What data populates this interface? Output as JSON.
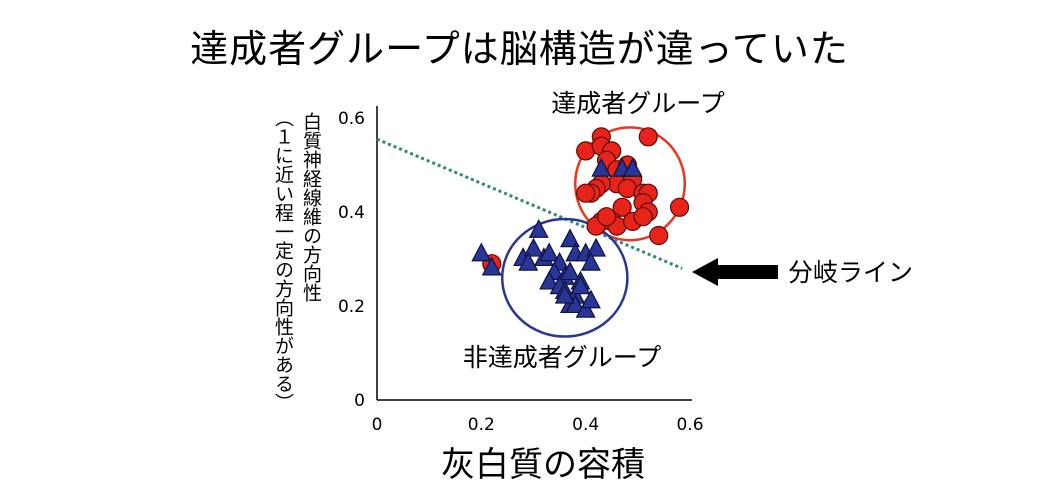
{
  "title": "達成者グループは脳構造が違っていた",
  "chart_data": {
    "type": "scatter",
    "xlabel": "灰白質の容積",
    "ylabel": "白質神経線維の方向性",
    "ylabel_note": "（１に近い程一定の方向性がある）",
    "xlim": [
      0,
      0.6
    ],
    "ylim": [
      0,
      0.6
    ],
    "xticks": [
      "0",
      "0.2",
      "0.4",
      "0.6"
    ],
    "yticks": [
      "0",
      "0.2",
      "0.4",
      "0.6"
    ],
    "grid": false,
    "colors": {
      "achiever": "#e8231a",
      "non_achiever": "#2a3598",
      "line": "#2e8b6e"
    },
    "series": [
      {
        "name": "達成者グループ",
        "marker": "circle",
        "points": [
          [
            0.22,
            0.29
          ],
          [
            0.4,
            0.53
          ],
          [
            0.43,
            0.56
          ],
          [
            0.43,
            0.54
          ],
          [
            0.45,
            0.53
          ],
          [
            0.44,
            0.51
          ],
          [
            0.46,
            0.49
          ],
          [
            0.48,
            0.5
          ],
          [
            0.52,
            0.56
          ],
          [
            0.46,
            0.46
          ],
          [
            0.43,
            0.46
          ],
          [
            0.49,
            0.47
          ],
          [
            0.42,
            0.45
          ],
          [
            0.48,
            0.45
          ],
          [
            0.51,
            0.44
          ],
          [
            0.52,
            0.44
          ],
          [
            0.51,
            0.42
          ],
          [
            0.47,
            0.41
          ],
          [
            0.41,
            0.44
          ],
          [
            0.4,
            0.44
          ],
          [
            0.45,
            0.38
          ],
          [
            0.43,
            0.38
          ],
          [
            0.42,
            0.37
          ],
          [
            0.46,
            0.37
          ],
          [
            0.44,
            0.39
          ],
          [
            0.49,
            0.38
          ],
          [
            0.52,
            0.4
          ],
          [
            0.51,
            0.39
          ],
          [
            0.58,
            0.41
          ],
          [
            0.54,
            0.35
          ]
        ]
      },
      {
        "name": "非達成者グループ",
        "marker": "triangle",
        "points": [
          [
            0.47,
            0.49
          ],
          [
            0.49,
            0.49
          ],
          [
            0.43,
            0.49
          ],
          [
            0.2,
            0.31
          ],
          [
            0.22,
            0.28
          ],
          [
            0.28,
            0.3
          ],
          [
            0.31,
            0.36
          ],
          [
            0.32,
            0.3
          ],
          [
            0.33,
            0.31
          ],
          [
            0.35,
            0.29
          ],
          [
            0.37,
            0.34
          ],
          [
            0.38,
            0.31
          ],
          [
            0.4,
            0.31
          ],
          [
            0.42,
            0.32
          ],
          [
            0.41,
            0.29
          ],
          [
            0.34,
            0.27
          ],
          [
            0.36,
            0.26
          ],
          [
            0.37,
            0.27
          ],
          [
            0.39,
            0.25
          ],
          [
            0.33,
            0.25
          ],
          [
            0.35,
            0.24
          ],
          [
            0.36,
            0.23
          ],
          [
            0.38,
            0.22
          ],
          [
            0.39,
            0.24
          ],
          [
            0.37,
            0.2
          ],
          [
            0.38,
            0.2
          ],
          [
            0.4,
            0.19
          ],
          [
            0.41,
            0.21
          ],
          [
            0.36,
            0.22
          ],
          [
            0.3,
            0.32
          ],
          [
            0.29,
            0.29
          ]
        ]
      }
    ],
    "circles": [
      {
        "label": "達成者グループ",
        "cx": 0.485,
        "cy": 0.46,
        "rx": 0.105,
        "ry": 0.12,
        "color": "#e8371e"
      },
      {
        "label": "非達成者グループ",
        "cx": 0.36,
        "cy": 0.26,
        "rx": 0.12,
        "ry": 0.125,
        "color": "#2a3598"
      }
    ],
    "divide_line": {
      "label": "分岐ライン",
      "from": [
        0,
        0.555
      ],
      "to": [
        0.585,
        0.28
      ]
    }
  }
}
